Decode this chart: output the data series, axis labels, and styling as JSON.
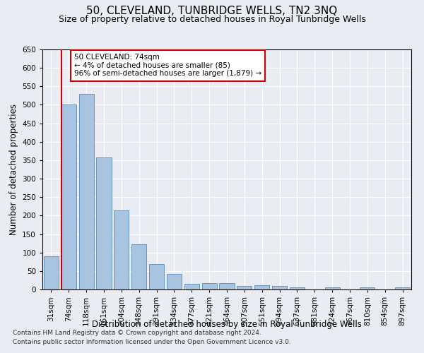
{
  "title": "50, CLEVELAND, TUNBRIDGE WELLS, TN2 3NQ",
  "subtitle": "Size of property relative to detached houses in Royal Tunbridge Wells",
  "xlabel": "Distribution of detached houses by size in Royal Tunbridge Wells",
  "ylabel": "Number of detached properties",
  "footnote1": "Contains HM Land Registry data © Crown copyright and database right 2024.",
  "footnote2": "Contains public sector information licensed under the Open Government Licence v3.0.",
  "annotation_title": "50 CLEVELAND: 74sqm",
  "annotation_line1": "← 4% of detached houses are smaller (85)",
  "annotation_line2": "96% of semi-detached houses are larger (1,879) →",
  "categories": [
    "31sqm",
    "74sqm",
    "118sqm",
    "161sqm",
    "204sqm",
    "248sqm",
    "291sqm",
    "334sqm",
    "377sqm",
    "421sqm",
    "464sqm",
    "507sqm",
    "551sqm",
    "594sqm",
    "637sqm",
    "681sqm",
    "724sqm",
    "767sqm",
    "810sqm",
    "854sqm",
    "897sqm"
  ],
  "values": [
    90,
    500,
    530,
    358,
    214,
    122,
    68,
    42,
    16,
    17,
    18,
    10,
    12,
    10,
    5,
    0,
    5,
    0,
    5,
    0,
    5
  ],
  "bar_color": "#a8c4e0",
  "bar_edge_color": "#5a8ab5",
  "red_line_index": 1,
  "ylim": [
    0,
    650
  ],
  "yticks": [
    0,
    50,
    100,
    150,
    200,
    250,
    300,
    350,
    400,
    450,
    500,
    550,
    600,
    650
  ],
  "bg_color": "#eaecf4",
  "plot_bg_color": "#eaecf4",
  "grid_color": "#ffffff",
  "annotation_box_color": "#ffffff",
  "annotation_border_color": "#cc0000",
  "red_line_color": "#cc0000",
  "title_fontsize": 11,
  "subtitle_fontsize": 9,
  "xlabel_fontsize": 8.5,
  "ylabel_fontsize": 8.5,
  "tick_fontsize": 7.5,
  "annotation_fontsize": 7.5,
  "footnote_fontsize": 6.5
}
